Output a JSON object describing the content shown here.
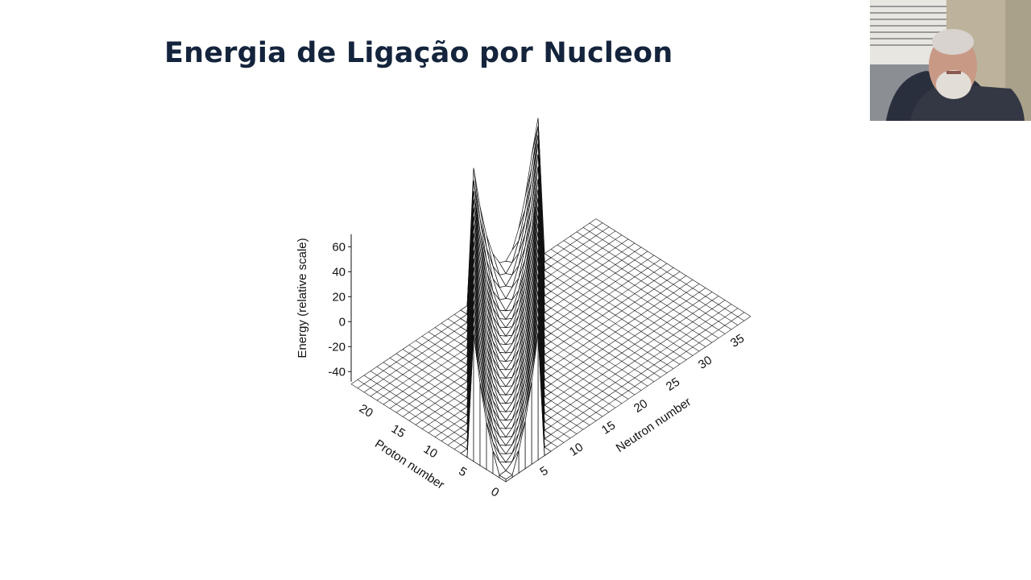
{
  "slide": {
    "title": "Energia de Ligação por Nucleon"
  },
  "webcam": {
    "icon": "presenter-video-thumbnail"
  },
  "chart_data": {
    "type": "surface3d",
    "zlabel": "Energy (relative scale)",
    "xlabel": "Neutron number",
    "ylabel": "Proton number",
    "zticks": [
      60,
      40,
      20,
      0,
      -20,
      -40
    ],
    "xticks": [
      5,
      10,
      15,
      20,
      25,
      30,
      35
    ],
    "yticks": [
      0,
      5,
      10,
      15,
      20
    ],
    "zlim": [
      -50,
      70
    ],
    "xlim": [
      0,
      38
    ],
    "ylim": [
      0,
      24
    ],
    "surface_model": {
      "description": "Mass-parabola valley: energy is lowest along the stability line and rises steeply away from it; shown as a wireframe over a flat base grid.",
      "valley_neutron_per_proton": 1.0,
      "min_energy": -48,
      "max_energy": 62,
      "curvature": 4.0,
      "band_half_width": 5.5
    },
    "colors": {
      "line": "#111111",
      "fill": "#ffffff"
    }
  }
}
